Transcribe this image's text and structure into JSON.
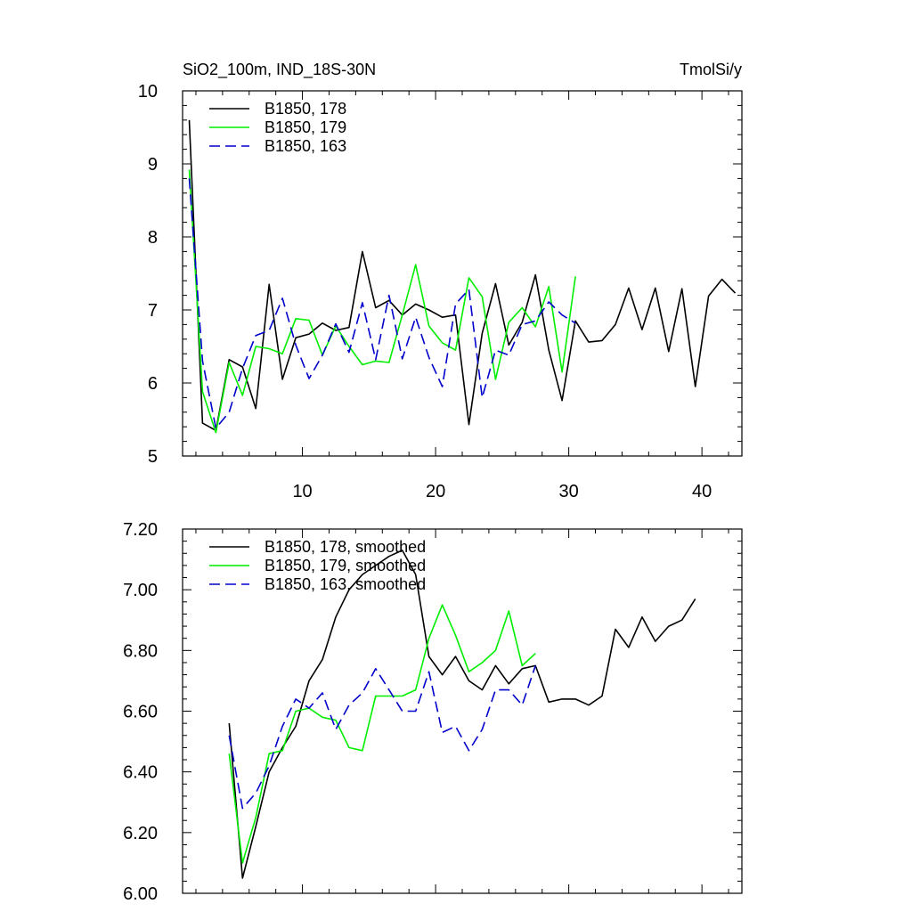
{
  "chart_data": [
    {
      "type": "line",
      "title_left": "SiO2_100m, IND_18S-30N",
      "title_right": "TmolSi/y",
      "xlabel": "",
      "ylabel": "",
      "xlim": [
        1,
        43
      ],
      "ylim": [
        5,
        10
      ],
      "x_ticks": [
        10,
        20,
        30,
        40
      ],
      "x_tick_labels": [
        "10",
        "20",
        "30",
        "40"
      ],
      "y_ticks": [
        5,
        6,
        7,
        8,
        9,
        10
      ],
      "y_tick_labels": [
        "5",
        "6",
        "7",
        "8",
        "9",
        "10"
      ],
      "legend_position": "top-left",
      "series": [
        {
          "name": "B1850, 178",
          "color": "#000000",
          "dash": "solid",
          "x": [
            1.5,
            2.5,
            3.5,
            4.5,
            5.5,
            6.5,
            7.5,
            8.5,
            9.5,
            10.5,
            11.5,
            12.5,
            13.5,
            14.5,
            15.5,
            16.5,
            17.5,
            18.5,
            19.5,
            20.5,
            21.5,
            22.5,
            23.5,
            24.5,
            25.5,
            26.5,
            27.5,
            28.5,
            29.5,
            30.5,
            31.5,
            32.5,
            33.5,
            34.5,
            35.5,
            36.5,
            37.5,
            38.5,
            39.5,
            40.5,
            41.5,
            42.5
          ],
          "y": [
            9.6,
            5.45,
            5.35,
            6.32,
            6.22,
            5.65,
            7.35,
            6.05,
            6.62,
            6.67,
            6.82,
            6.72,
            6.76,
            7.8,
            7.03,
            7.13,
            6.93,
            7.08,
            7.0,
            6.9,
            6.93,
            5.43,
            6.68,
            7.36,
            6.52,
            6.83,
            7.48,
            6.45,
            5.76,
            6.85,
            6.56,
            6.58,
            6.8,
            7.3,
            6.73,
            7.3,
            6.43,
            7.29,
            5.95,
            7.19,
            7.42,
            7.23
          ]
        },
        {
          "name": "B1850, 179",
          "color": "#00ee00",
          "dash": "solid",
          "x": [
            1.5,
            2.5,
            3.5,
            4.5,
            5.5,
            6.5,
            7.5,
            8.5,
            9.5,
            10.5,
            11.5,
            12.5,
            13.5,
            14.5,
            15.5,
            16.5,
            17.5,
            18.5,
            19.5,
            20.5,
            21.5,
            22.5,
            23.5,
            24.5,
            25.5,
            26.5,
            27.5,
            28.5,
            29.5,
            30.5
          ],
          "y": [
            8.92,
            5.88,
            5.32,
            6.28,
            5.83,
            6.5,
            6.47,
            6.4,
            6.88,
            6.86,
            6.38,
            6.78,
            6.5,
            6.25,
            6.3,
            6.28,
            6.93,
            7.62,
            6.78,
            6.55,
            6.45,
            7.44,
            7.18,
            6.05,
            6.83,
            7.03,
            6.77,
            7.32,
            6.15,
            7.46
          ]
        },
        {
          "name": "B1850, 163",
          "color": "#0000cc",
          "dash": "dashed",
          "x": [
            1.5,
            2.5,
            3.5,
            4.5,
            5.5,
            6.5,
            7.5,
            8.5,
            9.5,
            10.5,
            11.5,
            12.5,
            13.5,
            14.5,
            15.5,
            16.5,
            17.5,
            18.5,
            19.5,
            20.5,
            21.5,
            22.5,
            23.5,
            24.5,
            25.5,
            26.5,
            27.5,
            28.5,
            29.5,
            30.5
          ],
          "y": [
            8.8,
            6.3,
            5.38,
            5.6,
            6.2,
            6.65,
            6.72,
            7.16,
            6.52,
            6.06,
            6.38,
            6.81,
            6.42,
            7.1,
            6.32,
            7.2,
            6.33,
            6.9,
            6.35,
            5.95,
            7.08,
            7.28,
            5.8,
            6.45,
            6.38,
            6.8,
            6.85,
            7.11,
            6.93,
            6.82
          ]
        }
      ]
    },
    {
      "type": "line",
      "xlabel": "",
      "ylabel": "",
      "xlim": [
        1,
        43
      ],
      "ylim": [
        6.0,
        7.2
      ],
      "x_ticks": [
        10,
        20,
        30,
        40
      ],
      "x_tick_labels": [],
      "y_ticks": [
        6.0,
        6.2,
        6.4,
        6.6,
        6.8,
        7.0,
        7.2
      ],
      "y_tick_labels": [
        "6.00",
        "6.20",
        "6.40",
        "6.60",
        "6.80",
        "7.00",
        "7.20"
      ],
      "legend_position": "top-left",
      "series": [
        {
          "name": "B1850, 178, smoothed",
          "color": "#000000",
          "dash": "solid",
          "x": [
            4.5,
            5.5,
            6.5,
            7.5,
            8.5,
            9.5,
            10.5,
            11.5,
            12.5,
            13.5,
            14.5,
            15.5,
            16.5,
            17.5,
            18.5,
            19.5,
            20.5,
            21.5,
            22.5,
            23.5,
            24.5,
            25.5,
            26.5,
            27.5,
            28.5,
            29.5,
            30.5,
            31.5,
            32.5,
            33.5,
            34.5,
            35.5,
            36.5,
            37.5,
            38.5,
            39.5
          ],
          "y": [
            6.56,
            6.05,
            6.22,
            6.4,
            6.48,
            6.55,
            6.7,
            6.77,
            6.91,
            7.0,
            7.05,
            7.08,
            7.11,
            7.13,
            7.05,
            6.78,
            6.72,
            6.78,
            6.7,
            6.67,
            6.75,
            6.69,
            6.74,
            6.75,
            6.63,
            6.64,
            6.64,
            6.62,
            6.65,
            6.87,
            6.81,
            6.91,
            6.83,
            6.88,
            6.9,
            6.97
          ]
        },
        {
          "name": "B1850, 179, smoothed",
          "color": "#00ee00",
          "dash": "solid",
          "x": [
            4.5,
            5.5,
            6.5,
            7.5,
            8.5,
            9.5,
            10.5,
            11.5,
            12.5,
            13.5,
            14.5,
            15.5,
            16.5,
            17.5,
            18.5,
            19.5,
            20.5,
            21.5,
            22.5,
            23.5,
            24.5,
            25.5,
            26.5,
            27.5
          ],
          "y": [
            6.46,
            6.1,
            6.25,
            6.46,
            6.47,
            6.6,
            6.61,
            6.58,
            6.57,
            6.48,
            6.47,
            6.65,
            6.65,
            6.65,
            6.67,
            6.84,
            6.95,
            6.85,
            6.73,
            6.76,
            6.8,
            6.93,
            6.75,
            6.79
          ]
        },
        {
          "name": "B1850, 163, smoothed",
          "color": "#0000cc",
          "dash": "dashed",
          "x": [
            4.5,
            5.5,
            6.5,
            7.5,
            8.5,
            9.5,
            10.5,
            11.5,
            12.5,
            13.5,
            14.5,
            15.5,
            16.5,
            17.5,
            18.5,
            19.5,
            20.5,
            21.5,
            22.5,
            23.5,
            24.5,
            25.5,
            26.5,
            27.5
          ],
          "y": [
            6.52,
            6.28,
            6.33,
            6.42,
            6.55,
            6.64,
            6.61,
            6.66,
            6.54,
            6.62,
            6.66,
            6.74,
            6.67,
            6.6,
            6.6,
            6.73,
            6.53,
            6.55,
            6.47,
            6.54,
            6.67,
            6.67,
            6.62,
            6.75
          ]
        }
      ]
    }
  ]
}
